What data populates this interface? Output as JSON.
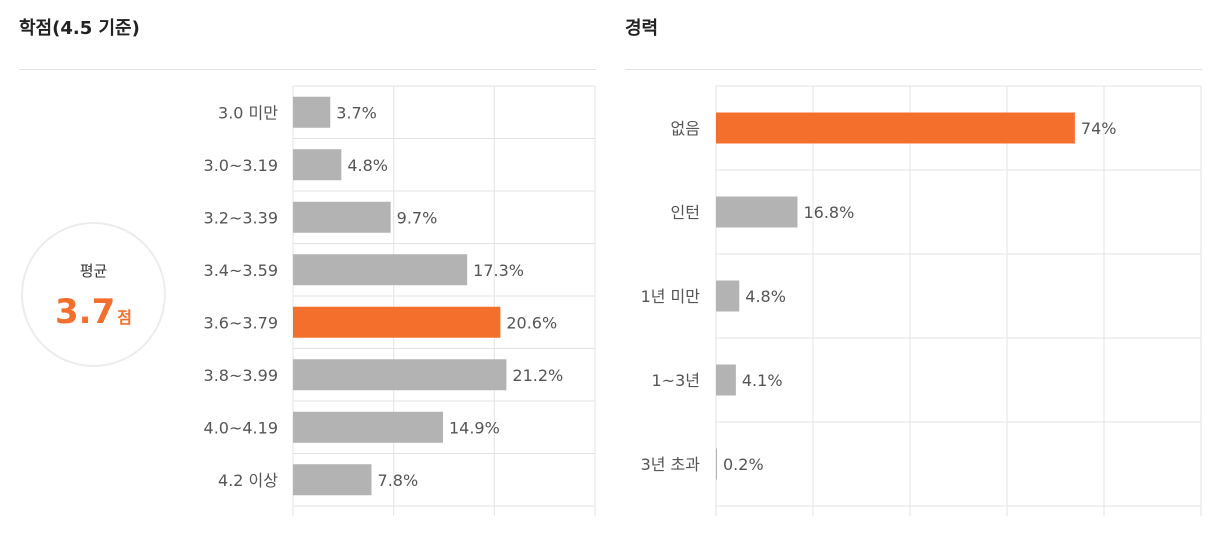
{
  "chart_data": [
    {
      "type": "bar",
      "orientation": "horizontal",
      "title": "학점(4.5 기준)",
      "categories": [
        "3.0 미만",
        "3.0~3.19",
        "3.2~3.39",
        "3.4~3.59",
        "3.6~3.79",
        "3.8~3.99",
        "4.0~4.19",
        "4.2 이상"
      ],
      "values": [
        3.7,
        4.8,
        9.7,
        17.3,
        20.6,
        21.2,
        14.9,
        7.8
      ],
      "value_labels": [
        "3.7%",
        "4.8%",
        "9.7%",
        "17.3%",
        "20.6%",
        "21.2%",
        "14.9%",
        "7.8%"
      ],
      "highlight_index": 4,
      "xlim": [
        0,
        30
      ],
      "grid": true
    },
    {
      "type": "bar",
      "orientation": "horizontal",
      "title": "경력",
      "categories": [
        "없음",
        "인턴",
        "1년 미만",
        "1~3년",
        "3년 초과"
      ],
      "values": [
        74,
        16.8,
        4.8,
        4.1,
        0.2
      ],
      "value_labels": [
        "74%",
        "16.8%",
        "4.8%",
        "4.1%",
        "0.2%"
      ],
      "highlight_index": 0,
      "xlim": [
        0,
        100
      ],
      "grid": true
    }
  ],
  "average": {
    "label": "평균",
    "value": "3.7",
    "unit": "점"
  },
  "colors": {
    "bar": "#b3b3b3",
    "highlight": "#f36f2b",
    "grid": "#e3e3e3"
  }
}
